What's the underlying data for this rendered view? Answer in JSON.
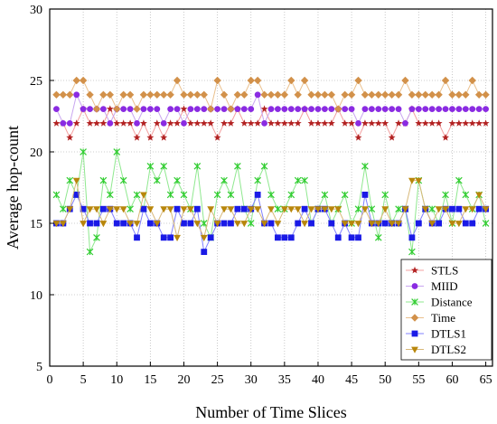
{
  "chart_data": {
    "type": "line",
    "title": "",
    "xlabel": "Number of Time Slices",
    "ylabel": "Average hop-count",
    "xlim": [
      0,
      66
    ],
    "ylim": [
      5,
      30
    ],
    "xticks": [
      0,
      5,
      10,
      15,
      20,
      25,
      30,
      35,
      40,
      45,
      50,
      55,
      60,
      65
    ],
    "yticks": [
      5,
      10,
      15,
      20,
      25,
      30
    ],
    "grid": true,
    "legend_position": "bottom-right",
    "x": [
      1,
      2,
      3,
      4,
      5,
      6,
      7,
      8,
      9,
      10,
      11,
      12,
      13,
      14,
      15,
      16,
      17,
      18,
      19,
      20,
      21,
      22,
      23,
      24,
      25,
      26,
      27,
      28,
      29,
      30,
      31,
      32,
      33,
      34,
      35,
      36,
      37,
      38,
      39,
      40,
      41,
      42,
      43,
      44,
      45,
      46,
      47,
      48,
      49,
      50,
      51,
      52,
      53,
      54,
      55,
      56,
      57,
      58,
      59,
      60,
      61,
      62,
      63,
      64,
      65
    ],
    "series": [
      {
        "name": "STLS",
        "color": "#b22222",
        "line_color": "#f4a0a0",
        "marker": "star",
        "values": [
          22,
          22,
          21,
          22,
          23,
          22,
          22,
          22,
          23,
          22,
          22,
          22,
          21,
          22,
          21,
          22,
          21,
          22,
          22,
          23,
          22,
          22,
          22,
          22,
          21,
          22,
          22,
          23,
          22,
          22,
          22,
          23,
          22,
          22,
          22,
          22,
          22,
          23,
          22,
          22,
          22,
          22,
          23,
          22,
          22,
          21,
          22,
          22,
          22,
          22,
          21,
          22,
          22,
          23,
          22,
          22,
          22,
          22,
          21,
          22,
          22,
          22,
          22,
          22,
          22
        ]
      },
      {
        "name": "MIID",
        "color": "#8a2be2",
        "line_color": "#c9a6f0",
        "marker": "circle",
        "values": [
          23,
          22,
          22,
          24,
          23,
          23,
          23,
          23,
          22,
          23,
          23,
          23,
          22,
          23,
          23,
          23,
          22,
          23,
          23,
          22,
          23,
          23,
          23,
          23,
          23,
          23,
          23,
          23,
          23,
          23,
          24,
          22,
          23,
          23,
          23,
          23,
          23,
          23,
          23,
          23,
          23,
          23,
          23,
          23,
          23,
          22,
          23,
          23,
          23,
          23,
          23,
          23,
          22,
          23,
          23,
          23,
          23,
          23,
          23,
          23,
          23,
          23,
          23,
          23,
          23
        ]
      },
      {
        "name": "Distance",
        "color": "#32cd32",
        "line_color": "#8fe88f",
        "marker": "cross",
        "values": [
          17,
          16,
          18,
          17,
          20,
          13,
          14,
          18,
          17,
          20,
          18,
          16,
          17,
          16,
          19,
          18,
          19,
          17,
          18,
          17,
          16,
          19,
          15,
          14,
          17,
          18,
          17,
          19,
          16,
          15,
          18,
          19,
          17,
          16,
          16,
          17,
          18,
          18,
          15,
          16,
          17,
          15,
          16,
          17,
          15,
          16,
          19,
          16,
          14,
          17,
          15,
          16,
          16,
          13,
          18,
          16,
          16,
          15,
          17,
          15,
          18,
          17,
          16,
          17,
          15
        ]
      },
      {
        "name": "Time",
        "color": "#d2914a",
        "line_color": "#eac08d",
        "marker": "diamond",
        "values": [
          24,
          24,
          24,
          25,
          25,
          24,
          23,
          24,
          24,
          23,
          24,
          24,
          23,
          24,
          24,
          24,
          24,
          24,
          25,
          24,
          24,
          24,
          24,
          23,
          25,
          24,
          23,
          24,
          24,
          25,
          25,
          24,
          24,
          24,
          24,
          25,
          24,
          25,
          24,
          24,
          24,
          24,
          23,
          24,
          24,
          25,
          24,
          24,
          24,
          24,
          24,
          24,
          25,
          24,
          24,
          24,
          24,
          24,
          25,
          24,
          24,
          24,
          25,
          24,
          24
        ]
      },
      {
        "name": "DTLS1",
        "color": "#1a1ae6",
        "line_color": "#8080ff",
        "marker": "square",
        "values": [
          15,
          15,
          16,
          17,
          16,
          15,
          15,
          16,
          16,
          15,
          15,
          15,
          14,
          16,
          15,
          15,
          14,
          14,
          16,
          15,
          15,
          16,
          13,
          14,
          15,
          15,
          15,
          16,
          16,
          16,
          17,
          15,
          15,
          14,
          14,
          14,
          15,
          16,
          15,
          16,
          16,
          15,
          14,
          15,
          14,
          14,
          17,
          15,
          15,
          15,
          15,
          15,
          16,
          14,
          15,
          16,
          15,
          15,
          16,
          16,
          16,
          15,
          15,
          16,
          16
        ]
      },
      {
        "name": "DTLS2",
        "color": "#b8860b",
        "line_color": "#d8b878",
        "marker": "triangle-down",
        "values": [
          15,
          15,
          16,
          18,
          15,
          16,
          16,
          15,
          16,
          16,
          16,
          15,
          15,
          17,
          16,
          15,
          16,
          16,
          14,
          16,
          16,
          15,
          14,
          16,
          15,
          16,
          16,
          15,
          15,
          16,
          16,
          15,
          16,
          15,
          16,
          16,
          16,
          15,
          16,
          16,
          16,
          16,
          16,
          15,
          15,
          15,
          16,
          15,
          15,
          16,
          15,
          15,
          16,
          18,
          18,
          16,
          15,
          16,
          16,
          15,
          15,
          16,
          16,
          17,
          16
        ]
      }
    ]
  }
}
